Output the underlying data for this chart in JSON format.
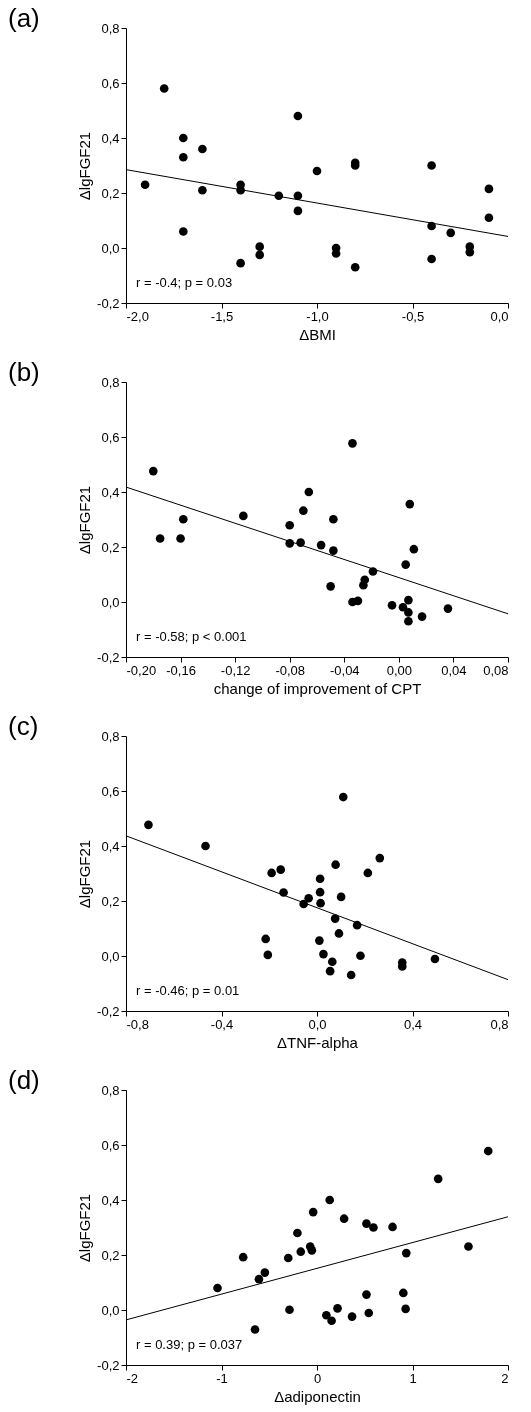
{
  "chart_data": [
    {
      "type": "scatter",
      "title": "(a)",
      "xlabel": "ΔBMI",
      "ylabel": "ΔlgFGF21",
      "marker": "circle",
      "annotations": [
        "r = -0.4; p = 0.03"
      ],
      "xlim": [
        -2,
        0
      ],
      "xticks": [
        {
          "value": -2,
          "label": "-2,0"
        },
        {
          "value": -1.5,
          "label": "-1,5"
        },
        {
          "value": -1,
          "label": "-1,0"
        },
        {
          "value": -0.5,
          "label": "-0,5"
        },
        {
          "value": 0,
          "label": "0,0"
        }
      ],
      "ylim": [
        -0.2,
        0.8
      ],
      "yticks": [
        {
          "value": -0.2,
          "label": "-0,2"
        },
        {
          "value": 0,
          "label": "0,0"
        },
        {
          "value": 0.2,
          "label": "0,2"
        },
        {
          "value": 0.4,
          "label": "0,4"
        },
        {
          "value": 0.6,
          "label": "0,6"
        },
        {
          "value": 0.8,
          "label": "0,8"
        }
      ],
      "series": [
        {
          "color": "#000000",
          "x": [
            -1.9,
            -1.8,
            -1.7,
            -1.7,
            -1.7,
            -1.6,
            -1.6,
            -1.4,
            -1.4,
            -1.4,
            -1.3,
            -1.3,
            -1.2,
            -1.1,
            -1.1,
            -1.1,
            -1.0,
            -0.9,
            -0.9,
            -0.8,
            -0.8,
            -0.8,
            -0.4,
            -0.4,
            -0.4,
            -0.3,
            -0.2,
            -0.2,
            -0.1,
            -0.1
          ],
          "values": [
            0.23,
            0.58,
            0.4,
            0.33,
            0.06,
            0.36,
            0.21,
            0.23,
            0.21,
            -0.055,
            0.005,
            -0.025,
            0.19,
            0.48,
            0.19,
            0.135,
            0.28,
            0.0,
            -0.02,
            0.31,
            0.3,
            -0.07,
            0.3,
            0.08,
            -0.04,
            0.055,
            0.005,
            -0.015,
            0.215,
            0.11
          ]
        },
        {
          "type": "line",
          "marker": "none",
          "color": "#000000",
          "x": [
            -2,
            0
          ],
          "values": [
            0.285,
            0.042
          ]
        }
      ]
    },
    {
      "type": "scatter",
      "title": "(b)",
      "xlabel": "change of improvement of CPT",
      "ylabel": "ΔlgFGF21",
      "marker": "circle",
      "annotations": [
        "r = -0.58; p < 0.001"
      ],
      "xlim": [
        -0.2,
        0.08
      ],
      "xticks": [
        {
          "value": -0.2,
          "label": "-0,20"
        },
        {
          "value": -0.16,
          "label": "-0,16"
        },
        {
          "value": -0.12,
          "label": "-0,12"
        },
        {
          "value": -0.08,
          "label": "-0,08"
        },
        {
          "value": -0.04,
          "label": "-0,04"
        },
        {
          "value": 0,
          "label": "0,00"
        },
        {
          "value": 0.04,
          "label": "0,04"
        },
        {
          "value": 0.08,
          "label": "0,08"
        }
      ],
      "ylim": [
        -0.2,
        0.8
      ],
      "yticks": [
        {
          "value": -0.2,
          "label": "-0,2"
        },
        {
          "value": 0,
          "label": "0,0"
        },
        {
          "value": 0.2,
          "label": "0,2"
        },
        {
          "value": 0.4,
          "label": "0,4"
        },
        {
          "value": 0.6,
          "label": "0,6"
        },
        {
          "value": 0.8,
          "label": "0,8"
        }
      ],
      "series": [
        {
          "color": "#000000",
          "x": [
            -0.18,
            -0.175,
            -0.16,
            -0.158,
            -0.114,
            -0.08,
            -0.08,
            -0.072,
            -0.07,
            -0.066,
            -0.057,
            -0.05,
            -0.048,
            -0.048,
            -0.034,
            -0.034,
            -0.03,
            -0.026,
            -0.025,
            -0.019,
            -0.005,
            0.003,
            0.005,
            0.007,
            0.007,
            0.007,
            0.008,
            0.011,
            0.017,
            0.036
          ],
          "values": [
            0.476,
            0.231,
            0.231,
            0.301,
            0.313,
            0.279,
            0.213,
            0.216,
            0.332,
            0.4,
            0.207,
            0.057,
            0.187,
            0.301,
            0.577,
            0.0,
            0.004,
            0.061,
            0.081,
            0.111,
            -0.012,
            -0.019,
            0.136,
            0.007,
            -0.038,
            -0.07,
            0.356,
            0.192,
            -0.053,
            -0.024
          ]
        },
        {
          "type": "line",
          "marker": "none",
          "color": "#000000",
          "x": [
            -0.2,
            0.08
          ],
          "values": [
            0.418,
            -0.043
          ]
        }
      ]
    },
    {
      "type": "scatter",
      "title": "(c)",
      "xlabel": "ΔTNF-alpha",
      "ylabel": "ΔlgFGF21",
      "marker": "circle",
      "annotations": [
        "r = -0.46; p = 0.01"
      ],
      "xlim": [
        -0.8,
        0.8
      ],
      "xticks": [
        {
          "value": -0.8,
          "label": "-0,8"
        },
        {
          "value": -0.4,
          "label": "-0,4"
        },
        {
          "value": 0,
          "label": "0,0"
        },
        {
          "value": 0.4,
          "label": "0,4"
        },
        {
          "value": 0.8,
          "label": "0,8"
        }
      ],
      "ylim": [
        -0.2,
        0.8
      ],
      "yticks": [
        {
          "value": -0.2,
          "label": "-0,2"
        },
        {
          "value": 0,
          "label": "0,0"
        },
        {
          "value": 0.2,
          "label": "0,2"
        },
        {
          "value": 0.4,
          "label": "0,4"
        },
        {
          "value": 0.6,
          "label": "0,6"
        },
        {
          "value": 0.8,
          "label": "0,8"
        }
      ],
      "series": [
        {
          "color": "#000000",
          "x": [
            -0.706,
            -0.467,
            -0.215,
            -0.206,
            -0.19,
            -0.152,
            -0.14,
            -0.056,
            -0.035,
            0.013,
            0.013,
            0.015,
            0.01,
            0.027,
            0.055,
            0.064,
            0.076,
            0.078,
            0.092,
            0.101,
            0.11,
            0.143,
            0.168,
            0.182,
            0.213,
            0.263,
            0.357,
            0.357,
            0.494
          ],
          "values": [
            0.477,
            0.4,
            0.062,
            0.004,
            0.302,
            0.314,
            0.231,
            0.189,
            0.21,
            0.281,
            0.232,
            0.192,
            0.056,
            0.007,
            -0.055,
            -0.021,
            0.136,
            0.332,
            0.082,
            0.215,
            0.578,
            -0.069,
            0.112,
            0.001,
            0.302,
            0.356,
            -0.024,
            -0.038,
            -0.011
          ]
        },
        {
          "type": "line",
          "marker": "none",
          "color": "#000000",
          "x": [
            -0.8,
            0.8
          ],
          "values": [
            0.437,
            -0.086
          ]
        }
      ]
    },
    {
      "type": "scatter",
      "title": "(d)",
      "xlabel": "Δadiponectin",
      "ylabel": "ΔlgFGF21",
      "marker": "circle",
      "annotations": [
        "r = 0.39; p = 0.037"
      ],
      "xlim": [
        -2,
        2
      ],
      "xticks": [
        -2,
        -1,
        0,
        1,
        2
      ],
      "ylim": [
        -0.2,
        0.8
      ],
      "yticks": [
        {
          "value": -0.2,
          "label": "-0,2"
        },
        {
          "value": 0,
          "label": "0,0"
        },
        {
          "value": 0.2,
          "label": "0,2"
        },
        {
          "value": 0.4,
          "label": "0,4"
        },
        {
          "value": 0.6,
          "label": "0,6"
        },
        {
          "value": 0.8,
          "label": "0,8"
        }
      ],
      "series": [
        {
          "color": "#000000",
          "x": [
            -1.042,
            -0.773,
            -0.608,
            -0.546,
            -0.649,
            -0.301,
            -0.288,
            -0.205,
            -0.17,
            -0.071,
            -0.054,
            -0.04,
            0.098,
            0.133,
            0.153,
            0.215,
            0.284,
            0.367,
            0.518,
            0.518,
            0.542,
            0.591,
            0.791,
            0.904,
            0.928,
            0.935,
            1.269,
            1.586,
            1.793
          ],
          "values": [
            0.08,
            0.192,
            0.112,
            0.136,
            -0.071,
            0.189,
            0.001,
            0.28,
            0.212,
            0.231,
            0.217,
            0.356,
            -0.019,
            0.4,
            -0.039,
            0.006,
            0.332,
            -0.024,
            0.314,
            0.056,
            -0.011,
            0.3,
            0.302,
            0.062,
            0.004,
            0.207,
            0.477,
            0.231,
            0.578
          ]
        },
        {
          "type": "line",
          "marker": "none",
          "color": "#000000",
          "x": [
            -2,
            2
          ],
          "values": [
            -0.036,
            0.339
          ]
        }
      ]
    }
  ]
}
